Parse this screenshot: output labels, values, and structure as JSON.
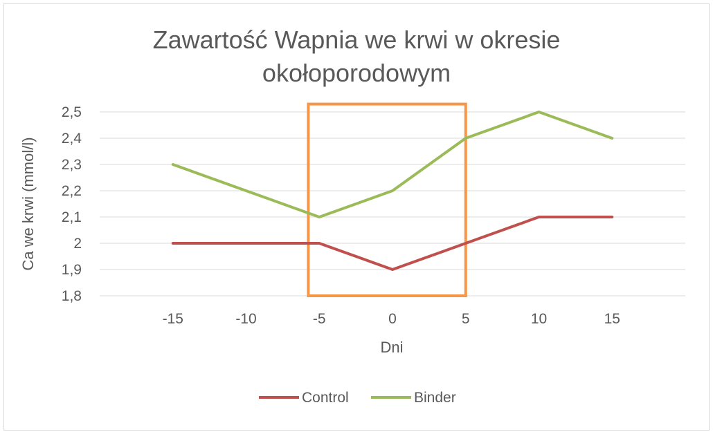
{
  "chart_data": {
    "type": "line",
    "title_lines": [
      "Zawartość Wapnia we krwi w okresie",
      "okołoporodowym"
    ],
    "xlabel": "Dni",
    "ylabel": "Ca we krwi (mmol/l)",
    "x": [
      -15,
      -10,
      -5,
      0,
      5,
      10,
      15
    ],
    "x_tick_labels": [
      "-15",
      "-10",
      "-5",
      "0",
      "5",
      "10",
      "15"
    ],
    "ylim": [
      1.8,
      2.5
    ],
    "y_ticks": [
      1.8,
      1.9,
      2.0,
      2.1,
      2.2,
      2.3,
      2.4,
      2.5
    ],
    "y_tick_labels": [
      "1,8",
      "1,9",
      "2",
      "2,1",
      "2,2",
      "2,3",
      "2,4",
      "2,5"
    ],
    "grid": true,
    "legend_position": "bottom",
    "series": [
      {
        "name": "Control",
        "color": "#C0504D",
        "values": [
          2.0,
          2.0,
          2.0,
          1.9,
          2.0,
          2.1,
          2.1
        ]
      },
      {
        "name": "Binder",
        "color": "#9BBB59",
        "values": [
          2.3,
          2.2,
          2.1,
          2.2,
          2.4,
          2.5,
          2.4
        ]
      }
    ],
    "highlight": {
      "x_range": [
        -5.75,
        5
      ],
      "y_range": [
        1.8,
        2.53
      ],
      "color": "#F79646"
    },
    "colors": {
      "grid": "#D9D9D9",
      "text": "#595959",
      "border": "#D9D9D9"
    }
  }
}
